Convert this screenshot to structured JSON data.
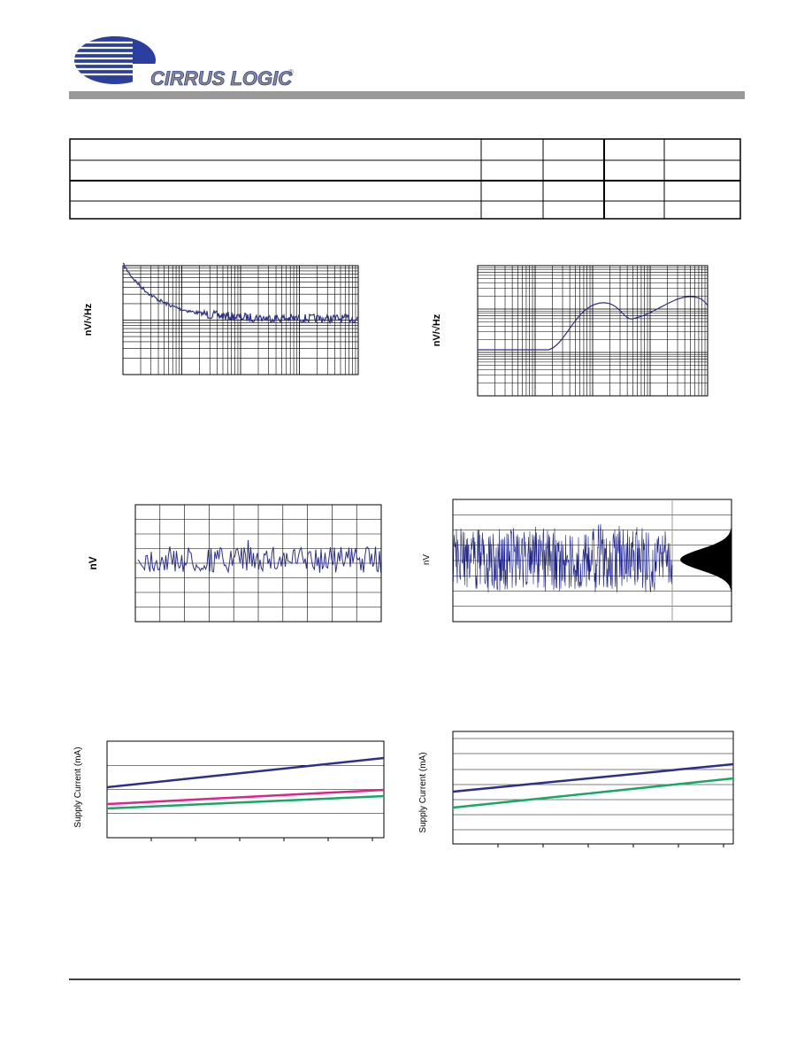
{
  "header": {
    "logo": "CIRRUS LOGIC",
    "registered": "®"
  },
  "figures": [
    {
      "y_label": "nV/√Hz"
    },
    {
      "y_label": "nV/√Hz"
    },
    {
      "y_label": "nV"
    },
    {
      "y_label": "nV"
    },
    {
      "y_label": "Supply Current (mA)"
    },
    {
      "y_label": "Supply Current (mA)"
    }
  ]
}
